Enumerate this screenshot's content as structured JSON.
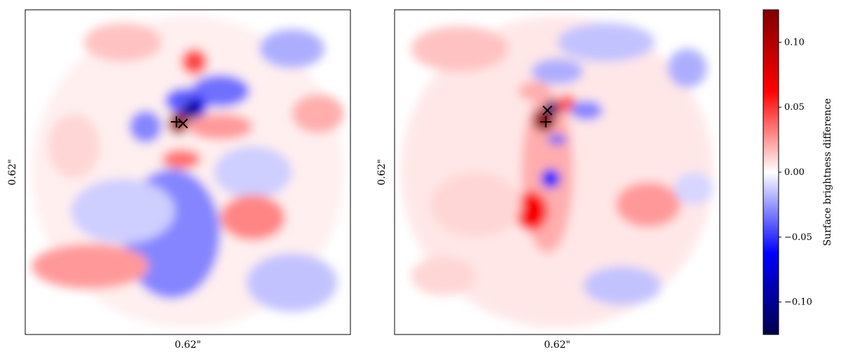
{
  "chart_data": {
    "type": "heatmap",
    "colormap": "seismic",
    "panels": [
      {
        "xlabel": "0.62\"",
        "ylabel": "0.62\"",
        "markers": [
          {
            "symbol": "plus",
            "x": 0.465,
            "y": 0.345
          },
          {
            "symbol": "x",
            "x": 0.485,
            "y": 0.35
          }
        ],
        "features": [
          {
            "x": 0.5,
            "y": 0.5,
            "rx": 0.48,
            "ry": 0.48,
            "value": 0.004
          },
          {
            "x": 0.45,
            "y": 0.69,
            "rx": 0.15,
            "ry": 0.2,
            "value": -0.03
          },
          {
            "x": 0.3,
            "y": 0.62,
            "rx": 0.16,
            "ry": 0.1,
            "value": -0.012
          },
          {
            "x": 0.7,
            "y": 0.5,
            "rx": 0.12,
            "ry": 0.08,
            "value": -0.012
          },
          {
            "x": 0.6,
            "y": 0.25,
            "rx": 0.09,
            "ry": 0.05,
            "value": -0.035
          },
          {
            "x": 0.49,
            "y": 0.28,
            "rx": 0.06,
            "ry": 0.04,
            "value": -0.04
          },
          {
            "x": 0.53,
            "y": 0.3,
            "rx": 0.03,
            "ry": 0.03,
            "value": -0.07
          },
          {
            "x": 0.51,
            "y": 0.31,
            "rx": 0.025,
            "ry": 0.03,
            "value": -0.1
          },
          {
            "x": 0.52,
            "y": 0.16,
            "rx": 0.04,
            "ry": 0.04,
            "value": 0.045
          },
          {
            "x": 0.6,
            "y": 0.36,
            "rx": 0.1,
            "ry": 0.04,
            "value": 0.025
          },
          {
            "x": 0.47,
            "y": 0.35,
            "rx": 0.03,
            "ry": 0.035,
            "value": 0.11
          },
          {
            "x": 0.48,
            "y": 0.46,
            "rx": 0.06,
            "ry": 0.03,
            "value": 0.035
          },
          {
            "x": 0.37,
            "y": 0.36,
            "rx": 0.05,
            "ry": 0.05,
            "value": -0.03
          },
          {
            "x": 0.2,
            "y": 0.79,
            "rx": 0.18,
            "ry": 0.07,
            "value": 0.025
          },
          {
            "x": 0.7,
            "y": 0.64,
            "rx": 0.1,
            "ry": 0.07,
            "value": 0.03
          },
          {
            "x": 0.3,
            "y": 0.1,
            "rx": 0.12,
            "ry": 0.06,
            "value": 0.015
          },
          {
            "x": 0.82,
            "y": 0.12,
            "rx": 0.1,
            "ry": 0.06,
            "value": -0.02
          },
          {
            "x": 0.9,
            "y": 0.32,
            "rx": 0.08,
            "ry": 0.06,
            "value": 0.02
          },
          {
            "x": 0.82,
            "y": 0.84,
            "rx": 0.14,
            "ry": 0.09,
            "value": -0.015
          },
          {
            "x": 0.15,
            "y": 0.42,
            "rx": 0.08,
            "ry": 0.1,
            "value": 0.01
          }
        ]
      },
      {
        "xlabel": "0.62\"",
        "ylabel": "0.62\"",
        "markers": [
          {
            "symbol": "plus",
            "x": 0.465,
            "y": 0.345
          },
          {
            "symbol": "x",
            "x": 0.47,
            "y": 0.31
          }
        ],
        "features": [
          {
            "x": 0.5,
            "y": 0.5,
            "rx": 0.48,
            "ry": 0.48,
            "value": 0.006
          },
          {
            "x": 0.47,
            "y": 0.5,
            "rx": 0.08,
            "ry": 0.25,
            "value": 0.02
          },
          {
            "x": 0.42,
            "y": 0.62,
            "rx": 0.05,
            "ry": 0.06,
            "value": 0.065
          },
          {
            "x": 0.48,
            "y": 0.52,
            "rx": 0.03,
            "ry": 0.03,
            "value": -0.06
          },
          {
            "x": 0.5,
            "y": 0.4,
            "rx": 0.03,
            "ry": 0.015,
            "value": -0.04
          },
          {
            "x": 0.46,
            "y": 0.34,
            "rx": 0.035,
            "ry": 0.035,
            "value": 0.12
          },
          {
            "x": 0.49,
            "y": 0.3,
            "rx": 0.03,
            "ry": 0.02,
            "value": -0.11
          },
          {
            "x": 0.53,
            "y": 0.29,
            "rx": 0.03,
            "ry": 0.03,
            "value": 0.04
          },
          {
            "x": 0.59,
            "y": 0.31,
            "rx": 0.05,
            "ry": 0.03,
            "value": -0.03
          },
          {
            "x": 0.5,
            "y": 0.19,
            "rx": 0.08,
            "ry": 0.04,
            "value": -0.02
          },
          {
            "x": 0.43,
            "y": 0.25,
            "rx": 0.05,
            "ry": 0.03,
            "value": 0.02
          },
          {
            "x": 0.65,
            "y": 0.1,
            "rx": 0.15,
            "ry": 0.06,
            "value": -0.015
          },
          {
            "x": 0.2,
            "y": 0.12,
            "rx": 0.15,
            "ry": 0.07,
            "value": 0.015
          },
          {
            "x": 0.9,
            "y": 0.18,
            "rx": 0.06,
            "ry": 0.06,
            "value": -0.02
          },
          {
            "x": 0.78,
            "y": 0.6,
            "rx": 0.1,
            "ry": 0.07,
            "value": 0.025
          },
          {
            "x": 0.92,
            "y": 0.55,
            "rx": 0.06,
            "ry": 0.05,
            "value": -0.01
          },
          {
            "x": 0.25,
            "y": 0.6,
            "rx": 0.14,
            "ry": 0.1,
            "value": 0.01
          },
          {
            "x": 0.7,
            "y": 0.85,
            "rx": 0.12,
            "ry": 0.06,
            "value": -0.015
          },
          {
            "x": 0.15,
            "y": 0.82,
            "rx": 0.1,
            "ry": 0.06,
            "value": 0.01
          }
        ]
      }
    ],
    "colorbar": {
      "label": "Surface brightness difference",
      "vmin": -0.125,
      "vmax": 0.125,
      "ticks": [
        0.1,
        0.05,
        0.0,
        -0.05,
        -0.1
      ],
      "tick_labels": [
        "0.10",
        "0.05",
        "0.00",
        "−0.05",
        "−0.10"
      ]
    }
  }
}
